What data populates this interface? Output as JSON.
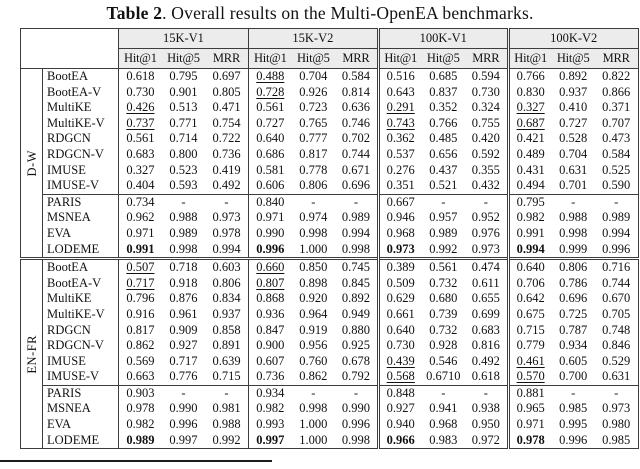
{
  "caption": {
    "label": "Table 2",
    "text": ". Overall results on the Multi-OpenEA benchmarks."
  },
  "table": {
    "group_headers": [
      "15K-V1",
      "15K-V2",
      "100K-V1",
      "100K-V2"
    ],
    "metric_headers": [
      "Hit@1",
      "Hit@5",
      "MRR"
    ],
    "sections": [
      {
        "label": "D-W",
        "baseline_start": 8,
        "rows": [
          {
            "method": "BootEA",
            "values": [
              "0.618",
              "0.795",
              "0.697",
              "0.488",
              "0.704",
              "0.584",
              "0.516",
              "0.685",
              "0.594",
              "0.766",
              "0.892",
              "0.822"
            ],
            "underline": [
              3
            ]
          },
          {
            "method": "BootEA-V",
            "values": [
              "0.730",
              "0.901",
              "0.805",
              "0.728",
              "0.926",
              "0.814",
              "0.643",
              "0.837",
              "0.730",
              "0.830",
              "0.937",
              "0.866"
            ],
            "underline": [
              3
            ]
          },
          {
            "method": "MultiKE",
            "values": [
              "0.426",
              "0.513",
              "0.471",
              "0.561",
              "0.723",
              "0.636",
              "0.291",
              "0.352",
              "0.324",
              "0.327",
              "0.410",
              "0.371"
            ],
            "underline": [
              0,
              6,
              9
            ]
          },
          {
            "method": "MultiKE-V",
            "values": [
              "0.737",
              "0.771",
              "0.754",
              "0.727",
              "0.765",
              "0.746",
              "0.743",
              "0.766",
              "0.755",
              "0.687",
              "0.727",
              "0.707"
            ],
            "underline": [
              0,
              6,
              9
            ]
          },
          {
            "method": "RDGCN",
            "values": [
              "0.561",
              "0.714",
              "0.722",
              "0.640",
              "0.777",
              "0.702",
              "0.362",
              "0.485",
              "0.420",
              "0.421",
              "0.528",
              "0.473"
            ]
          },
          {
            "method": "RDGCN-V",
            "values": [
              "0.683",
              "0.800",
              "0.736",
              "0.686",
              "0.817",
              "0.744",
              "0.537",
              "0.656",
              "0.592",
              "0.489",
              "0.704",
              "0.584"
            ]
          },
          {
            "method": "IMUSE",
            "values": [
              "0.327",
              "0.523",
              "0.419",
              "0.581",
              "0.778",
              "0.671",
              "0.276",
              "0.437",
              "0.355",
              "0.431",
              "0.631",
              "0.525"
            ]
          },
          {
            "method": "IMUSE-V",
            "values": [
              "0.404",
              "0.593",
              "0.492",
              "0.606",
              "0.806",
              "0.696",
              "0.351",
              "0.521",
              "0.432",
              "0.494",
              "0.701",
              "0.590"
            ]
          },
          {
            "method": "PARIS",
            "values": [
              "0.734",
              "-",
              "-",
              "0.840",
              "-",
              "-",
              "0.667",
              "-",
              "-",
              "0.795",
              "-",
              "-"
            ]
          },
          {
            "method": "MSNEA",
            "values": [
              "0.962",
              "0.988",
              "0.973",
              "0.971",
              "0.974",
              "0.989",
              "0.946",
              "0.957",
              "0.952",
              "0.982",
              "0.988",
              "0.989"
            ]
          },
          {
            "method": "EVA",
            "values": [
              "0.971",
              "0.989",
              "0.978",
              "0.990",
              "0.998",
              "0.994",
              "0.968",
              "0.989",
              "0.976",
              "0.991",
              "0.998",
              "0.994"
            ]
          },
          {
            "method": "LODEME",
            "values": [
              "0.991",
              "0.998",
              "0.994",
              "0.996",
              "1.000",
              "0.998",
              "0.973",
              "0.992",
              "0.973",
              "0.994",
              "0.999",
              "0.996"
            ],
            "bold": [
              0,
              3,
              6,
              9
            ]
          }
        ]
      },
      {
        "label": "EN-FR",
        "baseline_start": 8,
        "rows": [
          {
            "method": "BootEA",
            "values": [
              "0.507",
              "0.718",
              "0.603",
              "0.660",
              "0.850",
              "0.745",
              "0.389",
              "0.561",
              "0.474",
              "0.640",
              "0.806",
              "0.716"
            ],
            "underline": [
              0,
              3
            ]
          },
          {
            "method": "BootEA-V",
            "values": [
              "0.717",
              "0.918",
              "0.806",
              "0.807",
              "0.898",
              "0.845",
              "0.509",
              "0.732",
              "0.611",
              "0.706",
              "0.786",
              "0.744"
            ],
            "underline": [
              0,
              3
            ]
          },
          {
            "method": "MultiKE",
            "values": [
              "0.796",
              "0.876",
              "0.834",
              "0.868",
              "0.920",
              "0.892",
              "0.629",
              "0.680",
              "0.655",
              "0.642",
              "0.696",
              "0.670"
            ]
          },
          {
            "method": "MultiKE-V",
            "values": [
              "0.916",
              "0.961",
              "0.937",
              "0.936",
              "0.964",
              "0.949",
              "0.661",
              "0.739",
              "0.699",
              "0.675",
              "0.725",
              "0.705"
            ]
          },
          {
            "method": "RDGCN",
            "values": [
              "0.817",
              "0.909",
              "0.858",
              "0.847",
              "0.919",
              "0.880",
              "0.640",
              "0.732",
              "0.683",
              "0.715",
              "0.787",
              "0.748"
            ]
          },
          {
            "method": "RDGCN-V",
            "values": [
              "0.862",
              "0.927",
              "0.891",
              "0.900",
              "0.956",
              "0.925",
              "0.730",
              "0.928",
              "0.816",
              "0.779",
              "0.934",
              "0.846"
            ]
          },
          {
            "method": "IMUSE",
            "values": [
              "0.569",
              "0.717",
              "0.639",
              "0.607",
              "0.760",
              "0.678",
              "0.439",
              "0.546",
              "0.492",
              "0.461",
              "0.605",
              "0.529"
            ],
            "underline": [
              6,
              9
            ]
          },
          {
            "method": "IMUSE-V",
            "values": [
              "0.663",
              "0.776",
              "0.715",
              "0.736",
              "0.862",
              "0.792",
              "0.568",
              "0.6710",
              "0.618",
              "0.570",
              "0.700",
              "0.631"
            ],
            "underline": [
              6,
              9
            ]
          },
          {
            "method": "PARIS",
            "values": [
              "0.903",
              "-",
              "-",
              "0.934",
              "-",
              "-",
              "0.848",
              "-",
              "-",
              "0.881",
              "-",
              "-"
            ]
          },
          {
            "method": "MSNEA",
            "values": [
              "0.978",
              "0.990",
              "0.981",
              "0.982",
              "0.998",
              "0.990",
              "0.927",
              "0.941",
              "0.938",
              "0.965",
              "0.985",
              "0.973"
            ]
          },
          {
            "method": "EVA",
            "values": [
              "0.982",
              "0.996",
              "0.988",
              "0.993",
              "1.000",
              "0.996",
              "0.940",
              "0.968",
              "0.950",
              "0.971",
              "0.995",
              "0.980"
            ]
          },
          {
            "method": "LODEME",
            "values": [
              "0.989",
              "0.997",
              "0.992",
              "0.997",
              "1.000",
              "0.998",
              "0.966",
              "0.983",
              "0.972",
              "0.978",
              "0.996",
              "0.985"
            ],
            "bold": [
              0,
              3,
              6,
              9
            ]
          }
        ]
      }
    ]
  }
}
